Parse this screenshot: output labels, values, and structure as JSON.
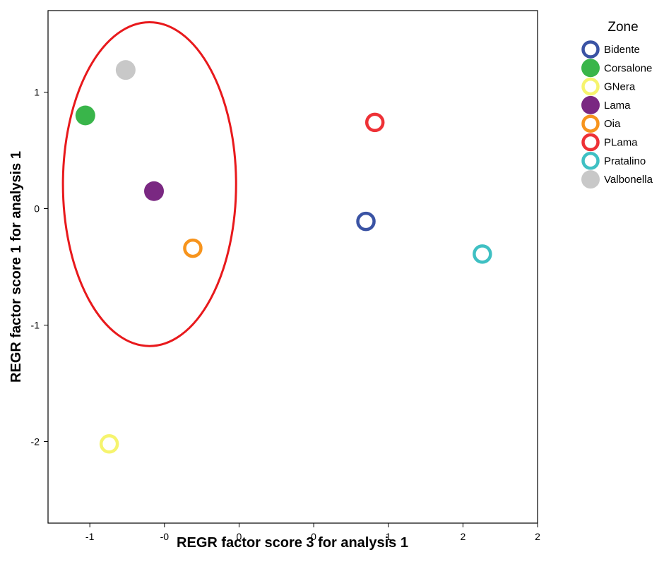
{
  "chart_data": {
    "type": "scatter",
    "xlabel": "REGR factor score   3 for analysis 1",
    "ylabel": "REGR factor score   1 for analysis 1",
    "xlim": [
      -1.28,
      2.0
    ],
    "ylim": [
      -2.7,
      1.7
    ],
    "x_ticks": [
      {
        "value": -1.0,
        "label": "-1"
      },
      {
        "value": -0.5,
        "label": "-0"
      },
      {
        "value": 0.0,
        "label": "0"
      },
      {
        "value": 0.5,
        "label": "0"
      },
      {
        "value": 1.0,
        "label": "1"
      },
      {
        "value": 1.5,
        "label": "2"
      },
      {
        "value": 2.0,
        "label": "2"
      }
    ],
    "y_ticks": [
      {
        "value": 1,
        "label": "1"
      },
      {
        "value": 0,
        "label": "0"
      },
      {
        "value": -1,
        "label": "-1"
      },
      {
        "value": -2,
        "label": "-2"
      }
    ],
    "grid": false,
    "legend": {
      "title": "Zone",
      "position": "top-right"
    },
    "series": [
      {
        "name": "Bidente",
        "x": 0.85,
        "y": -0.11,
        "color": "#3a53a4",
        "filled": false
      },
      {
        "name": "Corsalone",
        "x": -1.03,
        "y": 0.8,
        "color": "#39b54a",
        "filled": true
      },
      {
        "name": "GNera",
        "x": -0.87,
        "y": -2.02,
        "color": "#f6f46e",
        "filled": false
      },
      {
        "name": "Lama",
        "x": -0.57,
        "y": 0.15,
        "color": "#7a2882",
        "filled": true
      },
      {
        "name": "Oia",
        "x": -0.31,
        "y": -0.34,
        "color": "#f7941d",
        "filled": false
      },
      {
        "name": "PLama",
        "x": 0.91,
        "y": 0.74,
        "color": "#ee3136",
        "filled": false
      },
      {
        "name": "Pratalino",
        "x": 1.63,
        "y": -0.39,
        "color": "#3fc0c3",
        "filled": false
      },
      {
        "name": "Valbonella",
        "x": -0.76,
        "y": 1.19,
        "color": "#c8c8c8",
        "filled": true
      }
    ],
    "annotation_ellipse": {
      "cx": -0.6,
      "cy": 0.21,
      "rx": 0.58,
      "ry": 1.39,
      "color": "#e8191c"
    }
  }
}
